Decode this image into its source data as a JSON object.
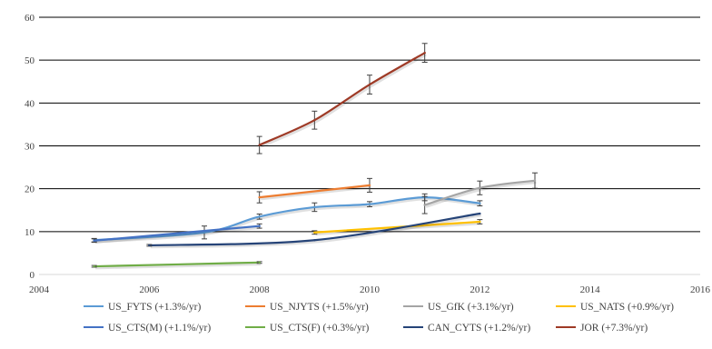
{
  "chart_data": {
    "type": "line",
    "title": "",
    "xlabel": "",
    "ylabel": "",
    "xlim": [
      2004,
      2016
    ],
    "ylim": [
      0,
      60
    ],
    "x_ticks": [
      2004,
      2006,
      2008,
      2010,
      2012,
      2014,
      2016
    ],
    "y_ticks": [
      0,
      10,
      20,
      30,
      40,
      50,
      60
    ],
    "grid": "horizontal",
    "legend_position": "bottom",
    "series": [
      {
        "name": "US_FYTS (+1.3%/yr)",
        "color": "#5b9bd5",
        "points": [
          [
            2005,
            8.0
          ],
          [
            2007,
            9.8
          ],
          [
            2008,
            13.5
          ],
          [
            2009,
            15.7
          ],
          [
            2010,
            16.4
          ],
          [
            2011,
            18.0
          ],
          [
            2012,
            16.6
          ]
        ],
        "errors": [
          0.4,
          1.5,
          0.6,
          1.0,
          0.6,
          0.8,
          0.6
        ]
      },
      {
        "name": "US_NJYTS (+1.5%/yr)",
        "color": "#ed7d31",
        "points": [
          [
            2008,
            18.0
          ],
          [
            2010,
            20.8
          ]
        ],
        "errors": [
          1.3,
          1.6
        ]
      },
      {
        "name": "US_GfK (+3.1%/yr)",
        "color": "#a5a5a5",
        "points": [
          [
            2011,
            16.2
          ],
          [
            2012,
            20.2
          ],
          [
            2013,
            21.9
          ]
        ],
        "errors": [
          2.0,
          1.6,
          1.8
        ]
      },
      {
        "name": "US_NATS (+0.9%/yr)",
        "color": "#ffc000",
        "points": [
          [
            2009,
            9.8
          ],
          [
            2012,
            12.3
          ]
        ],
        "errors": [
          0.4,
          0.5
        ]
      },
      {
        "name": "US_CTS(M) (+1.1%/yr)",
        "color": "#4472c4",
        "points": [
          [
            2005,
            7.9
          ],
          [
            2008,
            11.3
          ]
        ],
        "errors": [
          0.4,
          0.5
        ]
      },
      {
        "name": "US_CTS(F) (+0.3%/yr)",
        "color": "#70ad47",
        "points": [
          [
            2005,
            1.9
          ],
          [
            2008,
            2.8
          ]
        ],
        "errors": [
          0.2,
          0.2
        ]
      },
      {
        "name": "CAN_CYTS (+1.2%/yr)",
        "color": "#264478",
        "points": [
          [
            2006,
            6.8
          ],
          [
            2009,
            8.0
          ],
          [
            2012,
            14.2
          ]
        ],
        "errors": [
          0.2,
          0,
          0
        ]
      },
      {
        "name": "JOR (+7.3%/yr)",
        "color": "#9e3a26",
        "points": [
          [
            2008,
            30.2
          ],
          [
            2009,
            36.0
          ],
          [
            2010,
            44.3
          ],
          [
            2011,
            51.7
          ]
        ],
        "errors": [
          2.0,
          2.1,
          2.2,
          2.2
        ]
      }
    ]
  }
}
